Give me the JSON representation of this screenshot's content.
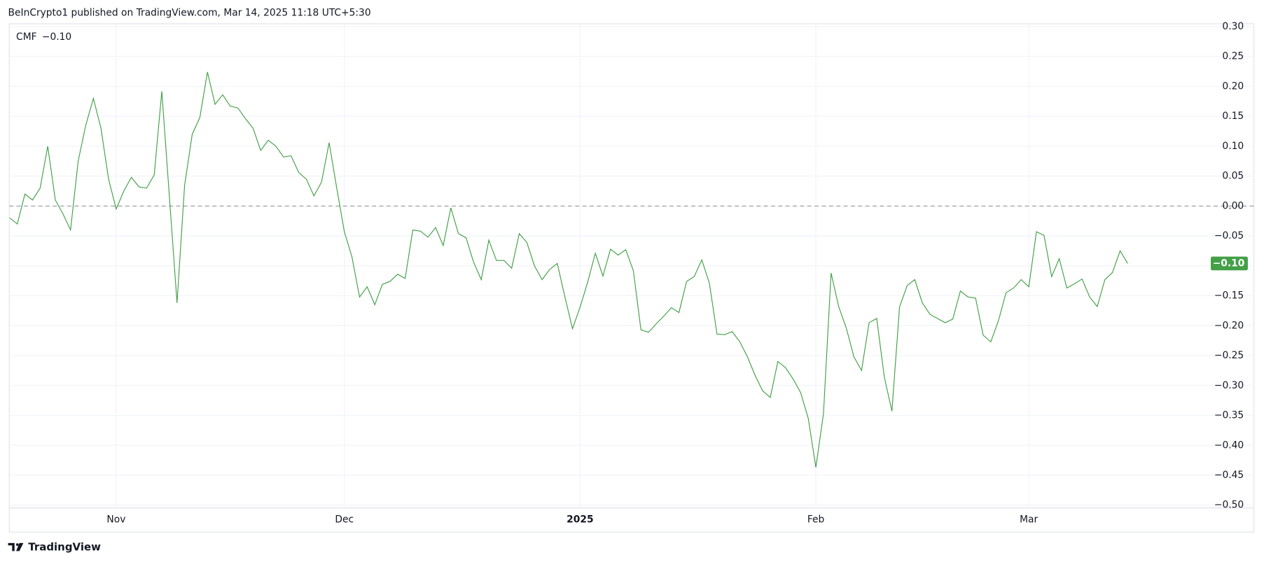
{
  "header": "BeInCrypto1 published on TradingView.com, Mar 14, 2025 11:18 UTC+5:30",
  "footer": "TradingView",
  "chart_data": {
    "type": "line",
    "categories": [
      null,
      null,
      null,
      null,
      null,
      null,
      null,
      null,
      null,
      null,
      null,
      null,
      null,
      null,
      "Nov",
      null,
      null,
      null,
      null,
      null,
      null,
      null,
      null,
      null,
      null,
      null,
      null,
      null,
      null,
      null,
      null,
      null,
      null,
      null,
      null,
      null,
      null,
      null,
      null,
      null,
      null,
      null,
      null,
      null,
      "Dec",
      null,
      null,
      null,
      null,
      null,
      null,
      null,
      null,
      null,
      null,
      null,
      null,
      null,
      null,
      null,
      null,
      null,
      null,
      null,
      null,
      null,
      null,
      null,
      null,
      null,
      null,
      null,
      null,
      null,
      null,
      "2025",
      null,
      null,
      null,
      null,
      null,
      null,
      null,
      null,
      null,
      null,
      null,
      null,
      null,
      null,
      null,
      null,
      null,
      null,
      null,
      null,
      null,
      null,
      null,
      null,
      null,
      null,
      null,
      null,
      null,
      null,
      "Feb",
      null,
      null,
      null,
      null,
      null,
      null,
      null,
      null,
      null,
      null,
      null,
      null,
      null,
      null,
      null,
      null,
      null,
      null,
      null,
      null,
      null,
      null,
      null,
      null,
      null,
      null,
      null,
      "Mar",
      null,
      null,
      null,
      null,
      null,
      null,
      null,
      null,
      null,
      null,
      null,
      null,
      null
    ],
    "series": [
      {
        "name": "CMF",
        "color": "#43a047",
        "last_label": "−0.10",
        "values": [
          -0.02,
          -0.03,
          0.02,
          0.01,
          0.03,
          0.1,
          0.01,
          -0.013,
          -0.04,
          0.075,
          0.135,
          0.18,
          0.13,
          0.045,
          -0.005,
          0.025,
          0.048,
          0.032,
          0.03,
          0.052,
          0.192,
          0.015,
          -0.162,
          0.035,
          0.12,
          0.148,
          0.224,
          0.17,
          0.186,
          0.167,
          0.164,
          0.146,
          0.13,
          0.093,
          0.11,
          0.1,
          0.082,
          0.084,
          0.056,
          0.045,
          0.017,
          0.04,
          0.106,
          0.03,
          -0.043,
          -0.085,
          -0.152,
          -0.135,
          -0.165,
          -0.131,
          -0.126,
          -0.114,
          -0.121,
          -0.04,
          -0.042,
          -0.052,
          -0.036,
          -0.066,
          -0.003,
          -0.046,
          -0.053,
          -0.094,
          -0.123,
          -0.057,
          -0.091,
          -0.091,
          -0.104,
          -0.046,
          -0.061,
          -0.1,
          -0.123,
          -0.106,
          -0.096,
          -0.152,
          -0.205,
          -0.169,
          -0.127,
          -0.079,
          -0.117,
          -0.072,
          -0.082,
          -0.073,
          -0.108,
          -0.207,
          -0.211,
          -0.197,
          -0.184,
          -0.17,
          -0.178,
          -0.126,
          -0.118,
          -0.09,
          -0.129,
          -0.214,
          -0.215,
          -0.21,
          -0.227,
          -0.252,
          -0.283,
          -0.309,
          -0.32,
          -0.26,
          -0.27,
          -0.289,
          -0.312,
          -0.355,
          -0.437,
          -0.347,
          -0.112,
          -0.168,
          -0.204,
          -0.252,
          -0.275,
          -0.195,
          -0.188,
          -0.286,
          -0.343,
          -0.169,
          -0.133,
          -0.123,
          -0.162,
          -0.181,
          -0.188,
          -0.195,
          -0.189,
          -0.142,
          -0.152,
          -0.154,
          -0.216,
          -0.227,
          -0.192,
          -0.145,
          -0.137,
          -0.123,
          -0.135,
          -0.043,
          -0.049,
          -0.118,
          -0.088,
          -0.137,
          -0.13,
          -0.122,
          -0.152,
          -0.168,
          -0.123,
          -0.111,
          -0.075,
          -0.096
        ]
      }
    ],
    "ylim": [
      -0.5,
      0.3
    ],
    "yticks": [
      {
        "value": 0.3,
        "label": "0.30"
      },
      {
        "value": 0.25,
        "label": "0.25"
      },
      {
        "value": 0.2,
        "label": "0.20"
      },
      {
        "value": 0.15,
        "label": "0.15"
      },
      {
        "value": 0.1,
        "label": "0.10"
      },
      {
        "value": 0.05,
        "label": "0.05"
      },
      {
        "value": 0,
        "label": "0.00"
      },
      {
        "value": -0.05,
        "label": "−0.05"
      },
      {
        "value": -0.1,
        "label": "−0.10"
      },
      {
        "value": -0.15,
        "label": "−0.15"
      },
      {
        "value": -0.2,
        "label": "−0.20"
      },
      {
        "value": -0.25,
        "label": "−0.25"
      },
      {
        "value": -0.3,
        "label": "−0.30"
      },
      {
        "value": -0.35,
        "label": "−0.35"
      },
      {
        "value": -0.4,
        "label": "−0.40"
      },
      {
        "value": -0.45,
        "label": "−0.45"
      },
      {
        "value": -0.5,
        "label": "−0.50"
      }
    ],
    "zero_line": 0,
    "grid": true
  }
}
